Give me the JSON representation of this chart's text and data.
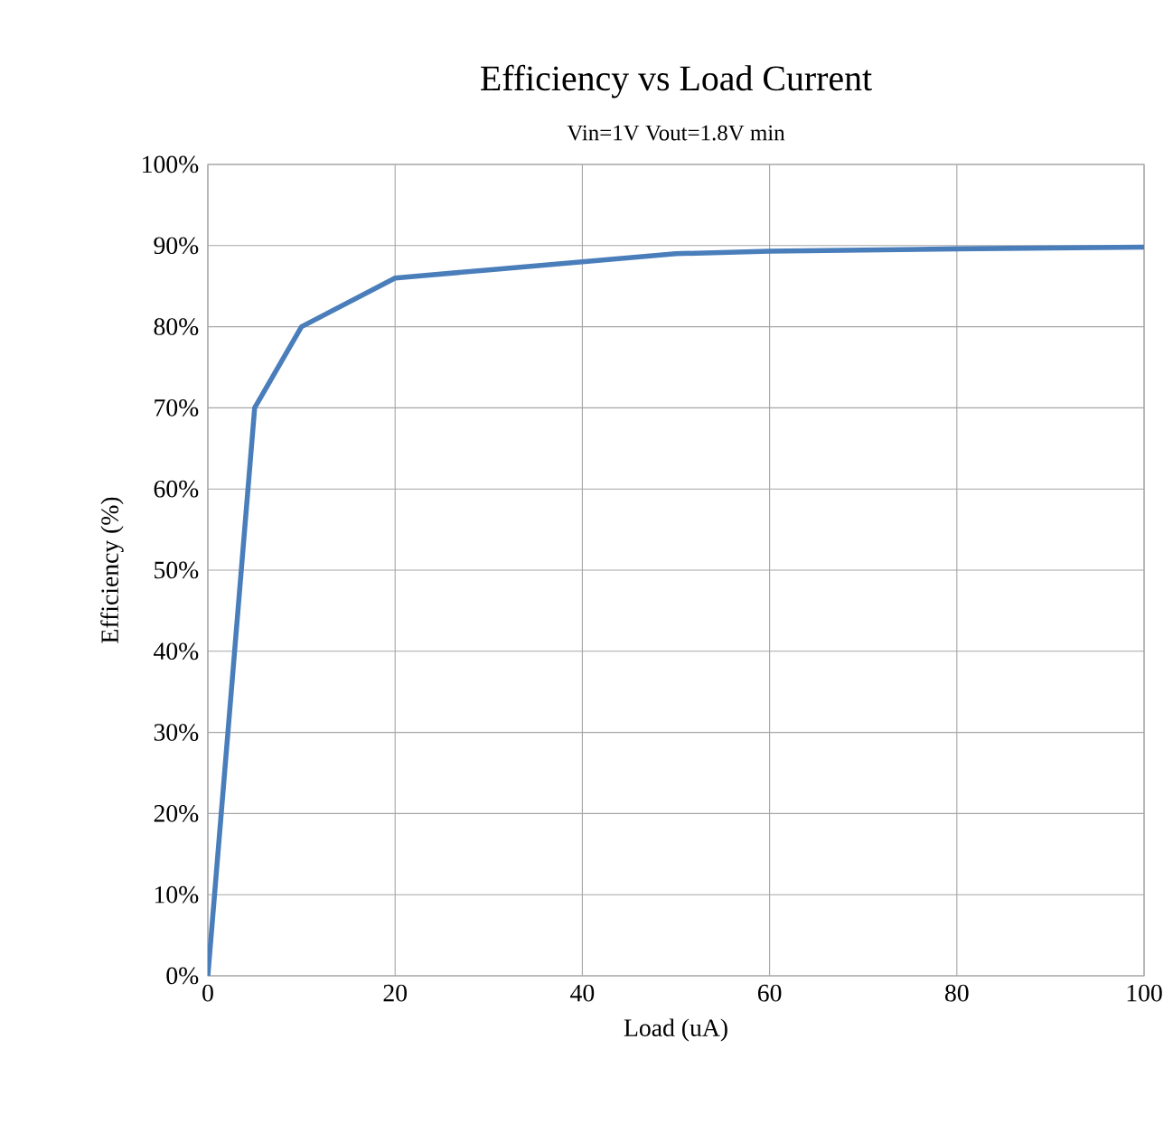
{
  "chart_data": {
    "type": "line",
    "title": "Efficiency vs Load Current",
    "subtitle": "Vin=1V Vout=1.8V min",
    "xlabel": "Load (uA)",
    "ylabel": "Efficiency (%)",
    "x": [
      0,
      5,
      10,
      20,
      30,
      40,
      50,
      60,
      80,
      100
    ],
    "series": [
      {
        "color": "#4a7ebb",
        "values": [
          0,
          70,
          80,
          86,
          87,
          88,
          89,
          89.3,
          89.6,
          89.8
        ]
      }
    ],
    "xlim": [
      0,
      100
    ],
    "xticks": [
      0,
      20,
      40,
      60,
      80,
      100
    ],
    "ylim": [
      0,
      100
    ],
    "yticks": [
      {
        "value": 0,
        "label": "0%"
      },
      {
        "value": 10,
        "label": "10%"
      },
      {
        "value": 20,
        "label": "20%"
      },
      {
        "value": 30,
        "label": "30%"
      },
      {
        "value": 40,
        "label": "40%"
      },
      {
        "value": 50,
        "label": "50%"
      },
      {
        "value": 60,
        "label": "60%"
      },
      {
        "value": 70,
        "label": "70%"
      },
      {
        "value": 80,
        "label": "80%"
      },
      {
        "value": 90,
        "label": "90%"
      },
      {
        "value": 100,
        "label": "100%"
      }
    ],
    "grid": true,
    "marker": "none",
    "line_style": "solid"
  }
}
